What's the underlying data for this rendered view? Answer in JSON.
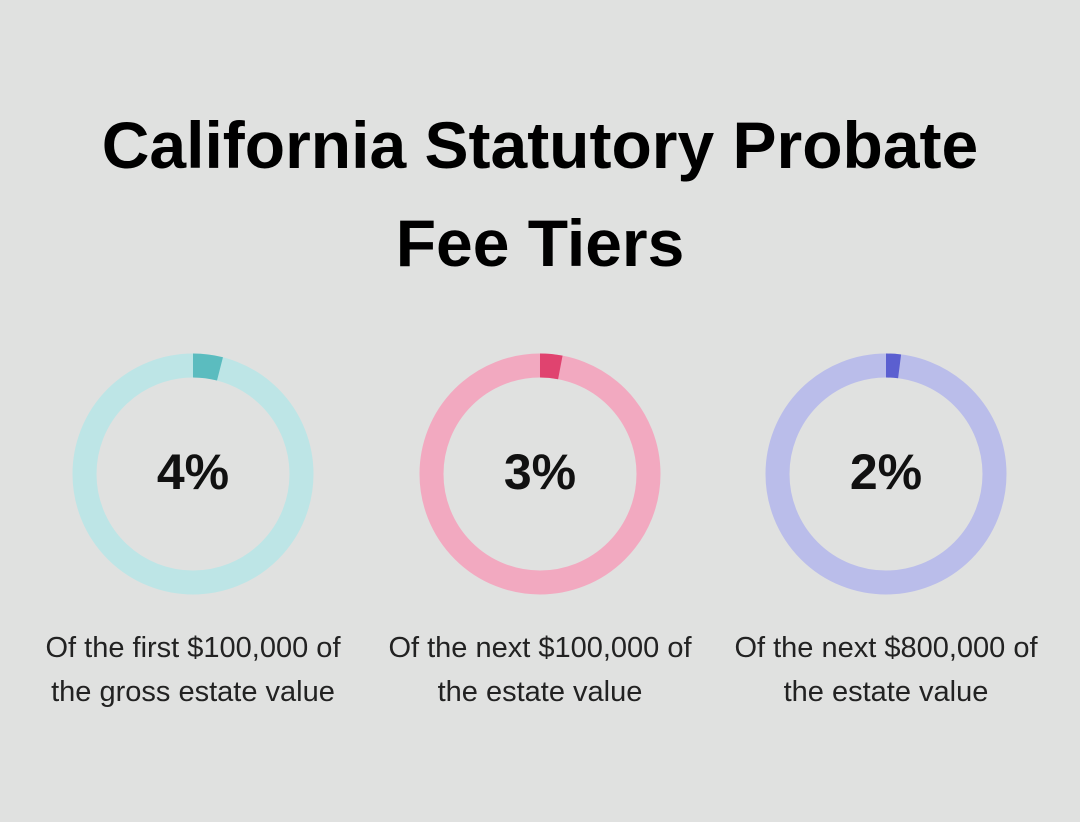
{
  "title": "California Statutory Probate Fee Tiers",
  "chart_data": [
    {
      "type": "donut",
      "values": [
        4
      ],
      "value_labels": [
        "4%"
      ],
      "ylim": [
        0,
        100
      ],
      "color": "#5bbcbf",
      "track_color": "#bde5e6",
      "caption": "Of the first $100,000 of the gross estate value"
    },
    {
      "type": "donut",
      "values": [
        3
      ],
      "value_labels": [
        "3%"
      ],
      "ylim": [
        0,
        100
      ],
      "color": "#e0436f",
      "track_color": "#f2a9c0",
      "caption": "Of the next $100,000 of the estate value"
    },
    {
      "type": "donut",
      "values": [
        2
      ],
      "value_labels": [
        "2%"
      ],
      "ylim": [
        0,
        100
      ],
      "color": "#5b5fd0",
      "track_color": "#babdea",
      "caption": "Of the next $800,000 of the estate value"
    }
  ]
}
